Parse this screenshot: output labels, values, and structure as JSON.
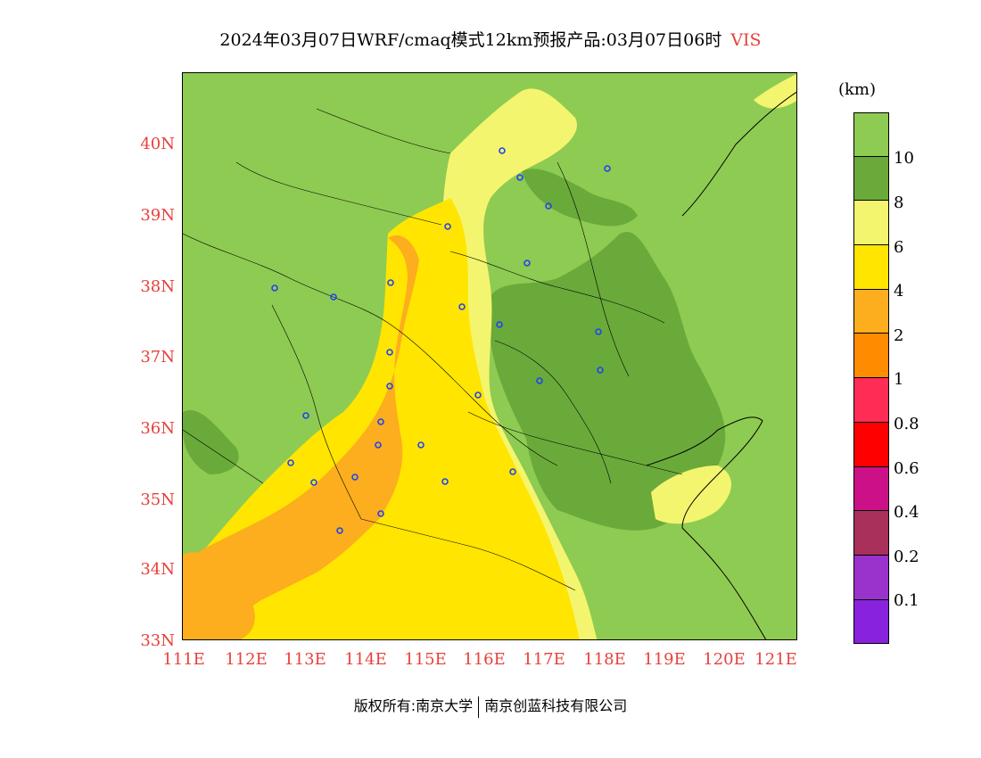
{
  "title": {
    "text": "2024年03月07日WRF/cmaq模式12km预报产品:03月07日06时",
    "variable": "VIS"
  },
  "axes": {
    "lat_labels": [
      "40N",
      "39N",
      "38N",
      "37N",
      "36N",
      "35N",
      "34N",
      "33N"
    ],
    "lon_labels": [
      "111E",
      "112E",
      "113E",
      "114E",
      "115E",
      "116E",
      "117E",
      "118E",
      "119E",
      "120E",
      "121E"
    ]
  },
  "colorbar": {
    "unit": "(km)",
    "levels": [
      "10",
      "8",
      "6",
      "4",
      "2",
      "1",
      "0.8",
      "0.6",
      "0.4",
      "0.2",
      "0.1"
    ],
    "colors": [
      "#8ecb52",
      "#6aaa3a",
      "#f4f56e",
      "#ffe500",
      "#fcae1e",
      "#ff8c00",
      "#ff2d55",
      "#ff0000",
      "#cc1188",
      "#a8305a",
      "#9933cc",
      "#8822dd"
    ]
  },
  "footer": {
    "left": "版权所有:南京大学",
    "right": "南京创蓝科技有限公司"
  },
  "palette": {
    "label_red": "#e8403a"
  }
}
